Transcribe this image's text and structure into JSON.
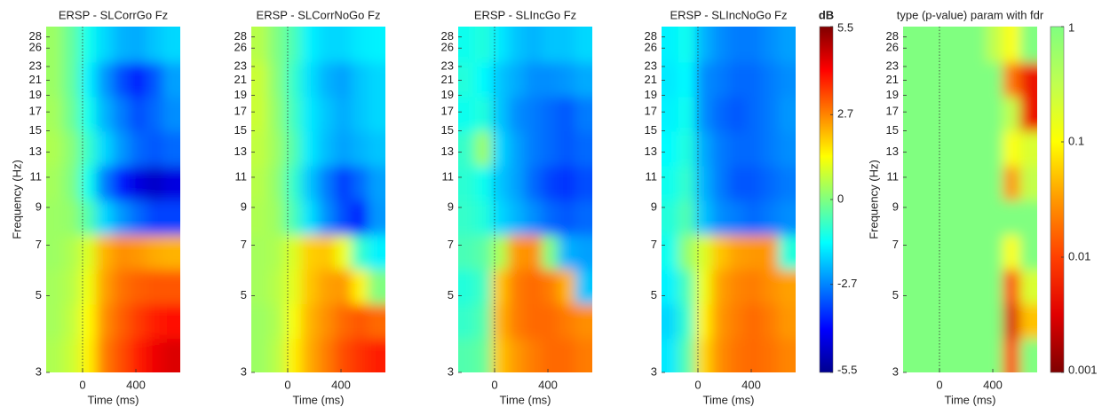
{
  "chart_data": [
    {
      "type": "heatmap",
      "title": "ERSP - SLCorrGo Fz",
      "x_label": "Time (ms)",
      "y_label": "Frequency (Hz)",
      "x": [
        -210,
        -85,
        40,
        165,
        290,
        415,
        540,
        665
      ],
      "y": [
        3.35,
        4.22,
        5.31,
        6.68,
        8.41,
        10.6,
        13.3,
        16.8,
        21.1,
        26.6
      ],
      "values": [
        [
          0.5,
          0.8,
          1.5,
          2.8,
          3.3,
          3.8,
          4.3,
          4.5
        ],
        [
          0.4,
          0.7,
          1.4,
          2.6,
          3.1,
          3.5,
          3.8,
          4.0
        ],
        [
          0.4,
          0.6,
          1.2,
          2.4,
          2.9,
          3.1,
          3.2,
          3.2
        ],
        [
          0.3,
          0.5,
          1.0,
          2.2,
          2.6,
          2.5,
          2.3,
          2.2
        ],
        [
          0.3,
          0.2,
          -0.5,
          -1.8,
          -2.5,
          -3.0,
          -3.4,
          -3.4
        ],
        [
          0.4,
          0.0,
          -1.2,
          -2.8,
          -3.8,
          -4.5,
          -4.8,
          -4.5
        ],
        [
          0.5,
          0.1,
          -0.8,
          -1.8,
          -2.5,
          -3.0,
          -3.2,
          -3.0
        ],
        [
          0.4,
          -0.2,
          -1.2,
          -2.2,
          -2.8,
          -3.3,
          -3.0,
          -2.6
        ],
        [
          0.3,
          -0.3,
          -1.5,
          -2.5,
          -3.3,
          -3.8,
          -3.2,
          -2.4
        ],
        [
          0.3,
          -0.3,
          -1.2,
          -1.8,
          -2.2,
          -2.3,
          -2.0,
          -1.8
        ]
      ],
      "xlim": [
        -273,
        733
      ],
      "ylim": [
        3,
        30
      ],
      "y_log": true,
      "xticks": [
        0,
        400
      ],
      "yticks": [
        3,
        5,
        7,
        9,
        11,
        13,
        15,
        17,
        19,
        21,
        23,
        26,
        28
      ],
      "event_line": 0,
      "colormap": [
        "#00008f",
        "#0000ff",
        "#0080ff",
        "#00ffff",
        "#80ff80",
        "#ffff00",
        "#ff8000",
        "#ff0000",
        "#800000"
      ],
      "clim": [
        -5.5,
        5.5
      ]
    },
    {
      "type": "heatmap",
      "title": "ERSP - SLCorrNoGo Fz",
      "x_label": "Time (ms)",
      "x": [
        -210,
        -85,
        40,
        165,
        290,
        415,
        540,
        665
      ],
      "y": [
        3.35,
        4.22,
        5.31,
        6.68,
        8.41,
        10.6,
        13.3,
        16.8,
        21.1,
        26.6
      ],
      "values": [
        [
          0.3,
          0.6,
          1.5,
          2.3,
          2.8,
          3.3,
          3.6,
          3.8
        ],
        [
          0.3,
          0.5,
          1.3,
          2.2,
          2.6,
          3.0,
          3.2,
          3.0
        ],
        [
          0.4,
          0.6,
          1.1,
          2.0,
          2.4,
          2.5,
          1.5,
          0.0
        ],
        [
          0.4,
          0.5,
          1.0,
          1.9,
          2.0,
          1.2,
          -0.8,
          -1.5
        ],
        [
          0.5,
          0.3,
          -0.6,
          -1.7,
          -2.6,
          -3.3,
          -3.8,
          -2.5
        ],
        [
          0.6,
          0.2,
          -0.8,
          -2.0,
          -2.8,
          -3.5,
          -3.0,
          -2.4
        ],
        [
          0.7,
          0.3,
          -0.5,
          -1.6,
          -2.1,
          -2.4,
          -2.2,
          -2.0
        ],
        [
          0.8,
          0.2,
          -0.7,
          -1.6,
          -2.0,
          -2.3,
          -2.0,
          -1.8
        ],
        [
          0.8,
          0.1,
          -0.8,
          -1.7,
          -2.2,
          -2.4,
          -2.0,
          -1.8
        ],
        [
          0.6,
          0.0,
          -0.6,
          -1.5,
          -1.8,
          -1.8,
          -1.6,
          -1.5
        ]
      ],
      "xlim": [
        -273,
        733
      ],
      "ylim": [
        3,
        30
      ],
      "y_log": true,
      "xticks": [
        0,
        400
      ],
      "yticks": [
        3,
        5,
        7,
        9,
        11,
        13,
        15,
        17,
        19,
        21,
        23,
        26,
        28
      ],
      "event_line": 0,
      "colormap": [
        "#00008f",
        "#0000ff",
        "#0080ff",
        "#00ffff",
        "#80ff80",
        "#ffff00",
        "#ff8000",
        "#ff0000",
        "#800000"
      ],
      "clim": [
        -5.5,
        5.5
      ]
    },
    {
      "type": "heatmap",
      "title": "ERSP - SLIncGo Fz",
      "x_label": "Time (ms)",
      "x": [
        -210,
        -85,
        40,
        165,
        290,
        415,
        540,
        665
      ],
      "y": [
        3.35,
        4.22,
        5.31,
        6.68,
        8.41,
        10.6,
        13.3,
        16.8,
        21.1,
        26.6
      ],
      "values": [
        [
          -0.5,
          -0.3,
          2.0,
          2.5,
          2.8,
          3.0,
          3.0,
          2.8
        ],
        [
          -0.8,
          -0.5,
          2.2,
          2.8,
          3.0,
          3.0,
          2.8,
          2.6
        ],
        [
          -1.0,
          -0.7,
          2.0,
          2.8,
          3.0,
          2.8,
          2.2,
          -2.0
        ],
        [
          -0.6,
          -0.4,
          0.5,
          2.5,
          2.6,
          0.0,
          -2.2,
          -2.4
        ],
        [
          -0.8,
          -1.0,
          -1.8,
          -2.2,
          -2.6,
          -3.0,
          -3.2,
          -3.0
        ],
        [
          -0.9,
          -1.2,
          -2.0,
          -2.4,
          -3.0,
          -3.4,
          -3.6,
          -3.3
        ],
        [
          -0.8,
          0.3,
          -1.8,
          -2.4,
          -2.8,
          -3.0,
          -3.2,
          -3.0
        ],
        [
          -1.2,
          -1.0,
          -2.0,
          -2.6,
          -2.8,
          -3.0,
          -3.2,
          -2.8
        ],
        [
          -1.0,
          -1.4,
          -2.0,
          -2.3,
          -2.6,
          -2.6,
          -2.5,
          -2.3
        ],
        [
          -1.2,
          -1.0,
          -1.6,
          -2.0,
          -2.2,
          -2.0,
          -2.0,
          -1.8
        ]
      ],
      "xlim": [
        -273,
        733
      ],
      "ylim": [
        3,
        30
      ],
      "y_log": true,
      "xticks": [
        0,
        400
      ],
      "yticks": [
        3,
        5,
        7,
        9,
        11,
        13,
        15,
        17,
        19,
        21,
        23,
        26,
        28
      ],
      "event_line": 0,
      "colormap": [
        "#00008f",
        "#0000ff",
        "#0080ff",
        "#00ffff",
        "#80ff80",
        "#ffff00",
        "#ff8000",
        "#ff0000",
        "#800000"
      ],
      "clim": [
        -5.5,
        5.5
      ]
    },
    {
      "type": "heatmap",
      "title": "ERSP - SLIncNoGo Fz",
      "x_label": "Time (ms)",
      "x": [
        -210,
        -85,
        40,
        165,
        290,
        415,
        540,
        665
      ],
      "y": [
        3.35,
        4.22,
        5.31,
        6.68,
        8.41,
        10.6,
        13.3,
        16.8,
        21.1,
        26.6
      ],
      "values": [
        [
          -1.6,
          -0.5,
          1.8,
          2.6,
          2.9,
          3.0,
          2.9,
          2.7
        ],
        [
          -1.8,
          -0.8,
          1.5,
          2.5,
          2.8,
          3.0,
          2.8,
          2.5
        ],
        [
          -1.5,
          -0.6,
          1.2,
          2.4,
          2.7,
          2.8,
          2.6,
          2.4
        ],
        [
          -1.2,
          0.2,
          1.0,
          2.0,
          2.4,
          2.5,
          2.5,
          -1.0
        ],
        [
          -1.0,
          -0.5,
          -2.0,
          -2.6,
          -2.8,
          -3.0,
          -2.8,
          -2.6
        ],
        [
          -1.2,
          -0.8,
          -2.2,
          -2.8,
          -3.2,
          -3.2,
          -3.0,
          -2.8
        ],
        [
          -1.4,
          -1.0,
          -2.3,
          -2.8,
          -3.0,
          -3.0,
          -2.8,
          -2.6
        ],
        [
          -1.5,
          -1.2,
          -2.6,
          -3.0,
          -3.2,
          -3.0,
          -2.8,
          -2.5
        ],
        [
          -1.6,
          -1.4,
          -2.6,
          -2.8,
          -3.0,
          -3.0,
          -2.8,
          -2.6
        ],
        [
          -1.5,
          -1.2,
          -2.2,
          -2.6,
          -2.8,
          -2.8,
          -2.6,
          -2.4
        ]
      ],
      "xlim": [
        -273,
        733
      ],
      "ylim": [
        3,
        30
      ],
      "y_log": true,
      "xticks": [
        0,
        400
      ],
      "yticks": [
        3,
        5,
        7,
        9,
        11,
        13,
        15,
        17,
        19,
        21,
        23,
        26,
        28
      ],
      "event_line": 0,
      "colormap": [
        "#00008f",
        "#0000ff",
        "#0080ff",
        "#00ffff",
        "#80ff80",
        "#ffff00",
        "#ff8000",
        "#ff0000",
        "#800000"
      ],
      "clim": [
        -5.5,
        5.5
      ],
      "colorbar": {
        "label": "dB",
        "ticks": [
          -5.5,
          -2.7,
          0,
          2.7,
          5.5
        ]
      }
    },
    {
      "type": "heatmap",
      "title": "type (p-value) param with fdr",
      "x_label": "Time (ms)",
      "y_label": "Frequency (Hz)",
      "x": [
        -210,
        -85,
        40,
        165,
        290,
        415,
        540,
        665
      ],
      "y": [
        3.35,
        4.22,
        5.31,
        6.68,
        8.41,
        10.6,
        13.3,
        16.8,
        21.1,
        26.6
      ],
      "values": [
        [
          1,
          1,
          1,
          1,
          1,
          1,
          0.01,
          1
        ],
        [
          1,
          1,
          1,
          1,
          1,
          1,
          0.003,
          0.05
        ],
        [
          1,
          1,
          1,
          1,
          1,
          1,
          0.01,
          0.2
        ],
        [
          1,
          1,
          1,
          1,
          1,
          1,
          0.1,
          1
        ],
        [
          1,
          1,
          1,
          1,
          1,
          1,
          1,
          1
        ],
        [
          1,
          1,
          1,
          1,
          1,
          1,
          0.03,
          0.3
        ],
        [
          1,
          1,
          1,
          1,
          1,
          1,
          0.1,
          0.2
        ],
        [
          1,
          1,
          1,
          1,
          1,
          1,
          0.3,
          0.005
        ],
        [
          1,
          1,
          1,
          1,
          1,
          1,
          0.02,
          0.005
        ],
        [
          1,
          1,
          1,
          1,
          1,
          0.3,
          0.1,
          1
        ]
      ],
      "xlim": [
        -273,
        733
      ],
      "ylim": [
        3,
        30
      ],
      "y_log": true,
      "xticks": [
        0,
        400
      ],
      "yticks": [
        3,
        5,
        7,
        9,
        11,
        13,
        15,
        17,
        19,
        21,
        23,
        26,
        28
      ],
      "event_line": 0,
      "colormap": [
        "#7f0000",
        "#e00000",
        "#ff4000",
        "#ff9900",
        "#ffff00",
        "#c0ff50",
        "#80ff80"
      ],
      "clim": [
        0.001,
        1
      ],
      "color_log": true,
      "colorbar": {
        "ticks": [
          0.001,
          0.01,
          0.1,
          1
        ]
      }
    }
  ]
}
